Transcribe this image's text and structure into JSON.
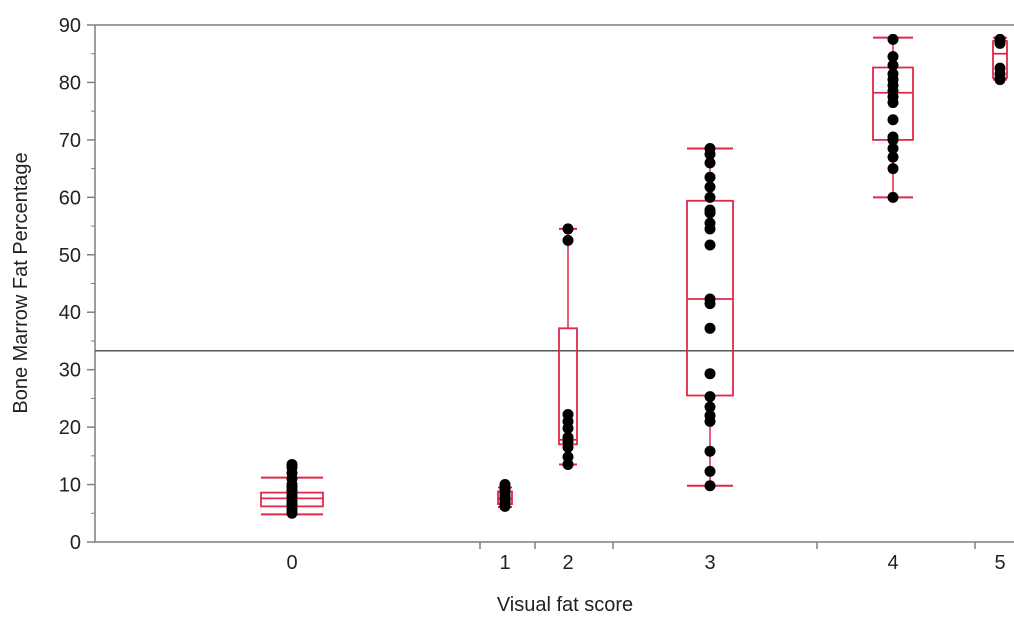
{
  "chart_data": {
    "type": "box",
    "xlabel": "Visual fat score",
    "ylabel": "Bone Marrow Fat Percentage",
    "ylim": [
      0,
      90
    ],
    "yticks": [
      0,
      10,
      20,
      30,
      40,
      50,
      60,
      70,
      80,
      90
    ],
    "grid": false,
    "reference_line": 33.3,
    "colors": {
      "box": "#e0284a",
      "point": "#000000",
      "axis": "#7f7f7f",
      "reference": "#555555",
      "text": "#222222"
    },
    "groups": [
      {
        "label": "0",
        "min": 4.8,
        "q1": 6.2,
        "median": 7.6,
        "q3": 8.6,
        "max": 11.2,
        "points": [
          5.0,
          5.5,
          6.0,
          6.5,
          7.0,
          7.5,
          8.0,
          8.5,
          9.0,
          9.5,
          10.0,
          11.0,
          12.0,
          13.0,
          13.5
        ]
      },
      {
        "label": "1",
        "min": 6.1,
        "q1": 6.6,
        "median": 7.5,
        "q3": 8.8,
        "max": 9.5,
        "points": [
          6.2,
          6.8,
          7.2,
          7.6,
          8.0,
          8.5,
          9.0,
          9.4,
          10.0
        ]
      },
      {
        "label": "2",
        "min": 13.5,
        "q1": 17.0,
        "median": 17.8,
        "q3": 37.2,
        "max": 54.5,
        "points": [
          13.5,
          14.8,
          16.5,
          17.5,
          18.2,
          19.8,
          21.0,
          22.2,
          52.5,
          54.5
        ]
      },
      {
        "label": "3",
        "min": 9.8,
        "q1": 25.5,
        "median": 42.3,
        "q3": 59.4,
        "max": 68.5,
        "points": [
          9.8,
          12.3,
          15.8,
          21.0,
          22.0,
          23.5,
          25.3,
          29.3,
          37.2,
          41.5,
          42.3,
          51.7,
          54.5,
          55.5,
          57.3,
          57.8,
          60.0,
          61.8,
          63.5,
          66.0,
          67.5,
          68.5
        ]
      },
      {
        "label": "4",
        "min": 60.0,
        "q1": 70.0,
        "median": 78.2,
        "q3": 82.6,
        "max": 87.8,
        "points": [
          60.0,
          65.0,
          67.0,
          68.5,
          70.0,
          70.5,
          73.5,
          76.5,
          77.5,
          78.5,
          79.5,
          80.5,
          81.5,
          83.0,
          84.5,
          87.5
        ]
      },
      {
        "label": "5",
        "min": 80.5,
        "q1": 80.8,
        "median": 85.0,
        "q3": 87.2,
        "max": 87.8,
        "points": [
          80.5,
          81.5,
          82.5,
          86.8,
          87.5
        ]
      }
    ]
  }
}
